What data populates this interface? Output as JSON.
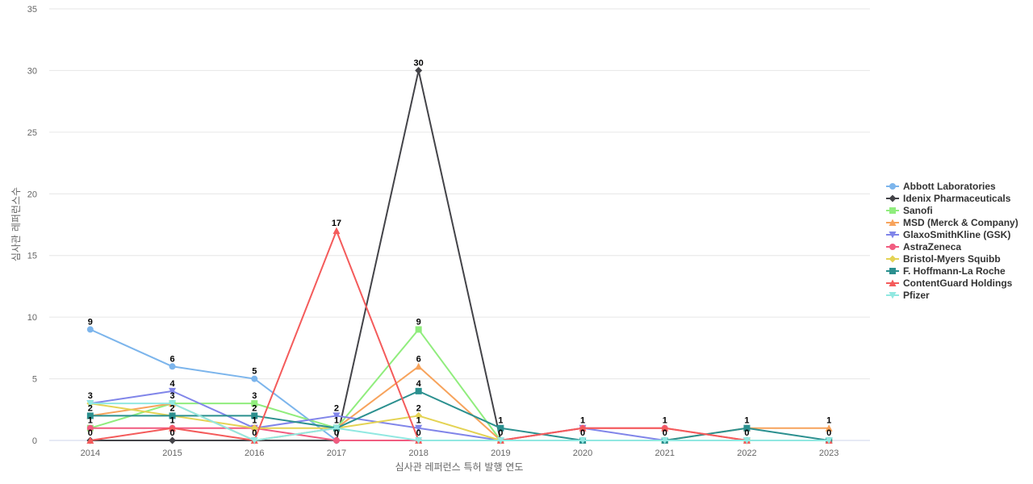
{
  "chart_data": {
    "type": "line",
    "title": "",
    "xlabel": "심사관 레퍼런스 특허 발행 연도",
    "ylabel": "심사관 레퍼런스수",
    "ylim": [
      0,
      35
    ],
    "yticks": [
      0,
      5,
      10,
      15,
      20,
      25,
      30,
      35
    ],
    "grid": true,
    "legend_position": "right",
    "categories": [
      "2014",
      "2015",
      "2016",
      "2017",
      "2018",
      "2019",
      "2020",
      "2021",
      "2022",
      "2023"
    ],
    "series": [
      {
        "name": "Abbott Laboratories",
        "color": "#7cb5ec",
        "marker": "circle",
        "values": [
          9,
          6,
          5,
          0,
          0,
          0,
          0,
          0,
          0,
          0
        ]
      },
      {
        "name": "Idenix Pharmaceuticals",
        "color": "#434348",
        "marker": "diamond",
        "values": [
          0,
          0,
          0,
          0,
          30,
          0,
          0,
          0,
          0,
          0
        ]
      },
      {
        "name": "Sanofi",
        "color": "#90ed7d",
        "marker": "square",
        "values": [
          1,
          3,
          3,
          1,
          9,
          0,
          0,
          0,
          0,
          0
        ]
      },
      {
        "name": "MSD (Merck & Company)",
        "color": "#f7a35c",
        "marker": "triangle",
        "values": [
          2,
          3,
          0,
          1,
          6,
          0,
          0,
          0,
          1,
          1
        ]
      },
      {
        "name": "GlaxoSmithKline (GSK)",
        "color": "#8085e9",
        "marker": "triangle-down",
        "values": [
          3,
          4,
          1,
          2,
          1,
          0,
          1,
          0,
          0,
          0
        ]
      },
      {
        "name": "AstraZeneca",
        "color": "#f15c80",
        "marker": "circle",
        "values": [
          1,
          1,
          1,
          0,
          0,
          0,
          1,
          1,
          0,
          0
        ]
      },
      {
        "name": "Bristol-Myers Squibb",
        "color": "#e4d354",
        "marker": "diamond",
        "values": [
          3,
          2,
          1,
          1,
          2,
          0,
          0,
          0,
          0,
          0
        ]
      },
      {
        "name": "F. Hoffmann-La Roche",
        "color": "#2b908f",
        "marker": "square",
        "values": [
          2,
          2,
          2,
          1,
          4,
          1,
          0,
          0,
          1,
          0
        ]
      },
      {
        "name": "ContentGuard Holdings",
        "color": "#f45b5b",
        "marker": "triangle",
        "values": [
          0,
          1,
          0,
          17,
          0,
          0,
          1,
          1,
          0,
          0
        ]
      },
      {
        "name": "Pfizer",
        "color": "#91e8e1",
        "marker": "triangle-down",
        "values": [
          3,
          3,
          0,
          1,
          0,
          0,
          0,
          0,
          0,
          0
        ]
      }
    ],
    "data_labels": [
      {
        "x": "2014",
        "values": [
          9,
          3,
          2,
          1,
          0
        ]
      },
      {
        "x": "2015",
        "values": [
          6,
          4,
          3,
          2,
          1,
          0
        ]
      },
      {
        "x": "2016",
        "values": [
          5,
          3,
          2,
          1,
          0
        ]
      },
      {
        "x": "2017",
        "values": [
          17,
          2,
          1,
          0
        ]
      },
      {
        "x": "2018",
        "values": [
          30,
          9,
          6,
          4,
          2,
          1,
          0
        ]
      },
      {
        "x": "2019",
        "values": [
          1,
          0
        ]
      },
      {
        "x": "2020",
        "values": [
          1,
          0
        ]
      },
      {
        "x": "2021",
        "values": [
          1,
          0
        ]
      },
      {
        "x": "2022",
        "values": [
          1,
          0
        ]
      },
      {
        "x": "2023",
        "values": [
          1,
          0
        ]
      }
    ]
  }
}
